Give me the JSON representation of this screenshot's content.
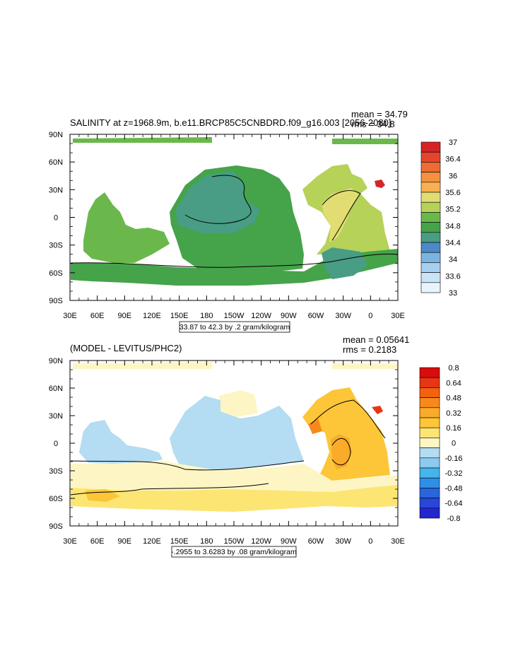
{
  "panels": [
    {
      "id": "top",
      "title": "SALINITY at z=1968.9m, b.e11.BRCP85C5CNBDRD.f09_g16.003 [2056-2080]",
      "stats": [
        "mean = 34.79",
        "rms = 34.8"
      ],
      "contour_info": "33.87 to 42.3 by .2 gram/kilogram",
      "lat_labels": [
        "90N",
        "60N",
        "30N",
        "0",
        "30S",
        "60S",
        "90S"
      ],
      "lon_labels": [
        "30E",
        "60E",
        "90E",
        "120E",
        "150E",
        "180",
        "150W",
        "120W",
        "90W",
        "60W",
        "30W",
        "0",
        "30E"
      ],
      "colorbar": {
        "labels": [
          "37",
          "36.4",
          "36",
          "35.6",
          "35.2",
          "34.8",
          "34.4",
          "34",
          "33.6",
          "33"
        ],
        "colors": [
          "#d82326",
          "#e5452c",
          "#ed6b34",
          "#f4913f",
          "#f9b052",
          "#e2dd73",
          "#b6d259",
          "#6ab84c",
          "#45a34a",
          "#489d84",
          "#4b8ac7",
          "#7ab4e0",
          "#a6d0ed",
          "#c9e4f5",
          "#e6f4fd"
        ]
      }
    },
    {
      "id": "bottom",
      "title": "(MODEL - LEVITUS/PHC2)",
      "stats": [
        "mean = 0.05641",
        "rms = 0.2183"
      ],
      "contour_info": "-.2955 to 3.6283 by .08 gram/kilogram",
      "lat_labels": [
        "90N",
        "60N",
        "30N",
        "0",
        "30S",
        "60S",
        "90S"
      ],
      "lon_labels": [
        "30E",
        "60E",
        "90E",
        "120E",
        "150E",
        "180",
        "150W",
        "120W",
        "90W",
        "60W",
        "30W",
        "0",
        "30E"
      ],
      "colorbar": {
        "labels": [
          "0.8",
          "0.64",
          "0.48",
          "0.32",
          "0.16",
          "0",
          "-0.16",
          "-0.32",
          "-0.48",
          "-0.64",
          "-0.8"
        ],
        "colors": [
          "#d80d0d",
          "#e83514",
          "#f2620f",
          "#f7891a",
          "#fbab2a",
          "#fcc638",
          "#fde573",
          "#fdf6c4",
          "#b4dcf2",
          "#8ccaf0",
          "#45b5ec",
          "#2f8ee6",
          "#2866de",
          "#2846d8",
          "#2426cf"
        ]
      }
    }
  ]
}
